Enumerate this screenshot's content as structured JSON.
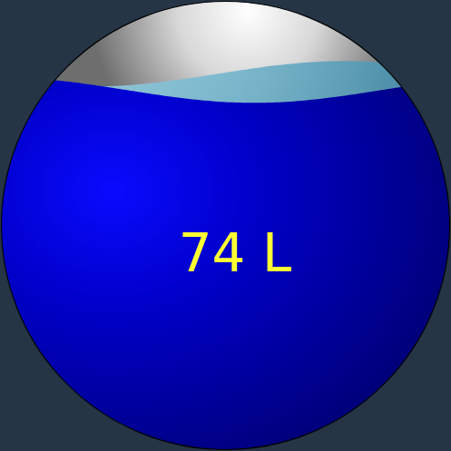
{
  "chart_data": {
    "type": "liquid_fill",
    "values": [
      74
    ],
    "value_labels": [
      "74 L"
    ],
    "ylim": [
      0,
      90
    ],
    "color": "#0000cc"
  }
}
